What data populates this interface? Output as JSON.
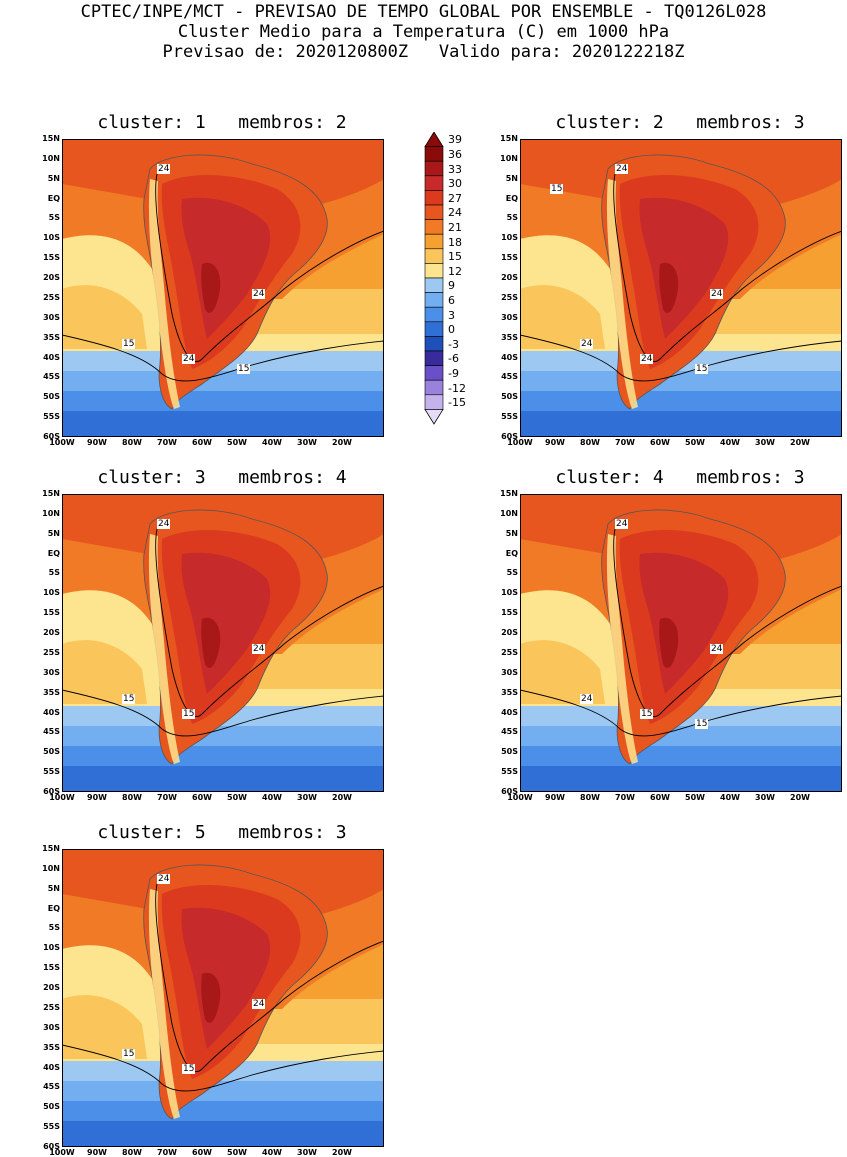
{
  "header": {
    "line1": "CPTEC/INPE/MCT - PREVISAO DE TEMPO GLOBAL POR ENSEMBLE - TQ0126L028",
    "line2": "Cluster Medio para a Temperatura (C) em 1000 hPa",
    "line3": "Previsao de: 2020120800Z   Valido para: 2020122218Z"
  },
  "axes": {
    "lat_labels": [
      "15N",
      "10N",
      "5N",
      "EQ",
      "5S",
      "10S",
      "15S",
      "20S",
      "25S",
      "30S",
      "35S",
      "40S",
      "45S",
      "50S",
      "55S",
      "60S"
    ],
    "lon_labels": [
      "100W",
      "90W",
      "80W",
      "70W",
      "60W",
      "50W",
      "40W",
      "30W",
      "20W"
    ]
  },
  "colorbar": {
    "levels": [
      "39",
      "36",
      "33",
      "30",
      "27",
      "24",
      "21",
      "18",
      "15",
      "12",
      "9",
      "6",
      "3",
      "0",
      "-3",
      "-6",
      "-9",
      "-12",
      "-15"
    ],
    "colors": [
      "#8b0a0a",
      "#a81818",
      "#c62a2a",
      "#dc3a1e",
      "#e8561f",
      "#f07a25",
      "#f5a030",
      "#fac55a",
      "#fde48f",
      "#9cc8f2",
      "#72aef0",
      "#4b8fe8",
      "#2f6fd6",
      "#1f4fb8",
      "#3a2b9c",
      "#6a50c8",
      "#9a82dc",
      "#c3b2ec",
      "#e6dcf8"
    ]
  },
  "panels": [
    {
      "title": "cluster: 1   membros: 2",
      "labels": [
        "24",
        "24",
        "24",
        "15",
        "15"
      ]
    },
    {
      "title": "cluster: 2   membros: 3",
      "labels": [
        "24",
        "24",
        "24",
        "24",
        "15",
        "15"
      ]
    },
    {
      "title": "cluster: 3   membros: 4",
      "labels": [
        "24",
        "24",
        "15",
        "15"
      ]
    },
    {
      "title": "cluster: 4   membros: 3",
      "labels": [
        "24",
        "24",
        "15",
        "24",
        "15"
      ]
    },
    {
      "title": "cluster: 5   membros: 3",
      "labels": [
        "24",
        "24",
        "15",
        "15"
      ]
    }
  ]
}
